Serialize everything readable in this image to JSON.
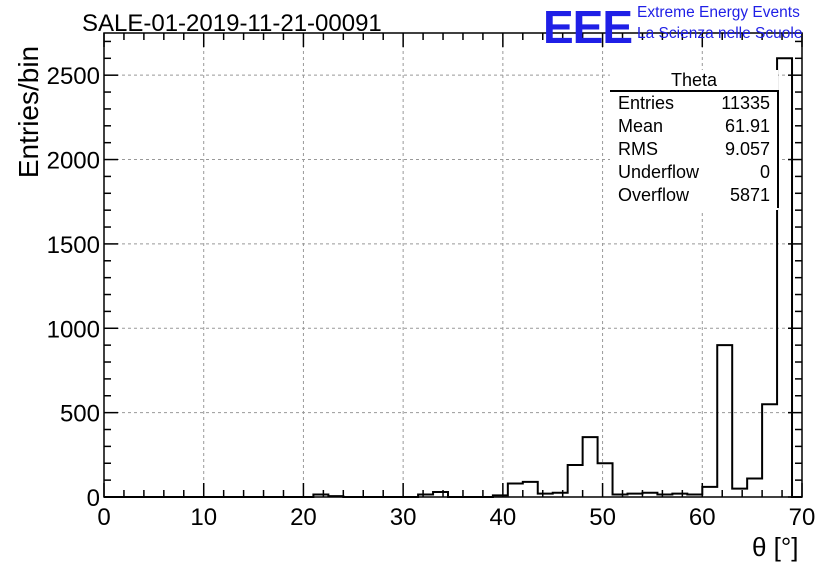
{
  "header": {
    "title": "SALE-01-2019-11-21-00091",
    "logo_mark": "EEE",
    "logo_line1": "Extreme Energy Events",
    "logo_line2": "La Scienza nelle Scuole",
    "logo_color": "#1f1fe6"
  },
  "stats_box": {
    "name": "Theta",
    "rows": [
      {
        "label": "Entries",
        "value": "11335"
      },
      {
        "label": "Mean",
        "value": "61.91"
      },
      {
        "label": "RMS",
        "value": "9.057"
      },
      {
        "label": "Underflow",
        "value": "0"
      },
      {
        "label": "Overflow",
        "value": "5871"
      }
    ]
  },
  "chart_data": {
    "type": "bar",
    "title": "SALE-01-2019-11-21-00091",
    "xlabel": "θ [°]",
    "ylabel": "Entries/bin",
    "xlim": [
      0,
      70
    ],
    "ylim": [
      0,
      2750
    ],
    "xticks": [
      0,
      10,
      20,
      30,
      40,
      50,
      60,
      70
    ],
    "yticks": [
      0,
      500,
      1000,
      1500,
      2000,
      2500
    ],
    "grid": true,
    "bin_width": 1.5,
    "bin_edges_start": 0,
    "values": [
      0,
      0,
      0,
      0,
      0,
      0,
      0,
      0,
      0,
      0,
      0,
      0,
      0,
      0,
      15,
      5,
      0,
      0,
      0,
      0,
      0,
      15,
      30,
      0,
      0,
      0,
      10,
      80,
      90,
      20,
      25,
      190,
      355,
      200,
      15,
      20,
      25,
      15,
      20,
      15,
      60,
      900,
      50,
      110,
      550,
      2600,
      0
    ]
  }
}
